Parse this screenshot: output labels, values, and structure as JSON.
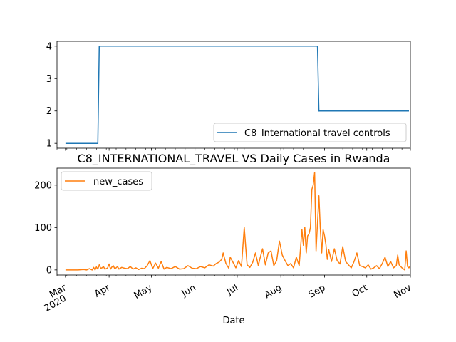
{
  "chart_data": [
    {
      "type": "line",
      "title": "",
      "xlabel": "",
      "ylabel": "",
      "ylim": [
        0.85,
        4.15
      ],
      "yticks": [
        1,
        2,
        3,
        4
      ],
      "legend": "bottom-right",
      "series": [
        {
          "name": "C8_International travel controls",
          "color": "#1f77b4",
          "x": [
            "2020-03-01",
            "2020-03-24",
            "2020-03-25",
            "2020-08-27",
            "2020-08-28",
            "2020-10-31"
          ],
          "values": [
            1,
            1,
            4,
            4,
            2,
            2
          ]
        }
      ]
    },
    {
      "type": "line",
      "title": "C8_INTERNATIONAL_TRAVEL VS Daily Cases in Rwanda",
      "xlabel": "Date",
      "ylabel": "",
      "ylim": [
        -12,
        240
      ],
      "yticks": [
        0,
        100,
        200
      ],
      "legend": "top-left",
      "x_ticks": [
        {
          "date": "2020-03-01",
          "label": "Mar",
          "sublabel": "2020"
        },
        {
          "date": "2020-04-01",
          "label": "Apr",
          "sublabel": ""
        },
        {
          "date": "2020-05-01",
          "label": "May",
          "sublabel": ""
        },
        {
          "date": "2020-06-01",
          "label": "Jun",
          "sublabel": ""
        },
        {
          "date": "2020-07-01",
          "label": "Jul",
          "sublabel": ""
        },
        {
          "date": "2020-08-01",
          "label": "Aug",
          "sublabel": ""
        },
        {
          "date": "2020-09-01",
          "label": "Sep",
          "sublabel": ""
        },
        {
          "date": "2020-10-01",
          "label": "Oct",
          "sublabel": ""
        },
        {
          "date": "2020-11-01",
          "label": "Nov",
          "sublabel": ""
        }
      ],
      "series": [
        {
          "name": "new_cases",
          "color": "#ff7f0e",
          "x": [
            "2020-03-01",
            "2020-03-10",
            "2020-03-14",
            "2020-03-16",
            "2020-03-18",
            "2020-03-20",
            "2020-03-21",
            "2020-03-22",
            "2020-03-23",
            "2020-03-24",
            "2020-03-25",
            "2020-03-26",
            "2020-03-27",
            "2020-03-28",
            "2020-03-29",
            "2020-03-30",
            "2020-03-31",
            "2020-04-01",
            "2020-04-02",
            "2020-04-03",
            "2020-04-04",
            "2020-04-05",
            "2020-04-06",
            "2020-04-07",
            "2020-04-08",
            "2020-04-10",
            "2020-04-12",
            "2020-04-14",
            "2020-04-16",
            "2020-04-18",
            "2020-04-20",
            "2020-04-22",
            "2020-04-24",
            "2020-04-26",
            "2020-04-28",
            "2020-04-30",
            "2020-05-02",
            "2020-05-04",
            "2020-05-06",
            "2020-05-08",
            "2020-05-10",
            "2020-05-12",
            "2020-05-15",
            "2020-05-18",
            "2020-05-21",
            "2020-05-24",
            "2020-05-27",
            "2020-05-30",
            "2020-06-02",
            "2020-06-05",
            "2020-06-08",
            "2020-06-11",
            "2020-06-14",
            "2020-06-16",
            "2020-06-18",
            "2020-06-20",
            "2020-06-21",
            "2020-06-23",
            "2020-06-25",
            "2020-06-26",
            "2020-06-28",
            "2020-06-30",
            "2020-07-02",
            "2020-07-04",
            "2020-07-06",
            "2020-07-08",
            "2020-07-10",
            "2020-07-12",
            "2020-07-14",
            "2020-07-16",
            "2020-07-17",
            "2020-07-19",
            "2020-07-21",
            "2020-07-23",
            "2020-07-25",
            "2020-07-27",
            "2020-07-29",
            "2020-07-31",
            "2020-08-02",
            "2020-08-04",
            "2020-08-06",
            "2020-08-08",
            "2020-08-10",
            "2020-08-12",
            "2020-08-14",
            "2020-08-16",
            "2020-08-17",
            "2020-08-18",
            "2020-08-19",
            "2020-08-20",
            "2020-08-21",
            "2020-08-22",
            "2020-08-23",
            "2020-08-24",
            "2020-08-25",
            "2020-08-26",
            "2020-08-27",
            "2020-08-28",
            "2020-08-29",
            "2020-08-30",
            "2020-08-31",
            "2020-09-01",
            "2020-09-02",
            "2020-09-03",
            "2020-09-04",
            "2020-09-06",
            "2020-09-08",
            "2020-09-10",
            "2020-09-12",
            "2020-09-14",
            "2020-09-16",
            "2020-09-18",
            "2020-09-20",
            "2020-09-22",
            "2020-09-24",
            "2020-09-26",
            "2020-09-28",
            "2020-09-30",
            "2020-10-02",
            "2020-10-04",
            "2020-10-06",
            "2020-10-08",
            "2020-10-10",
            "2020-10-12",
            "2020-10-14",
            "2020-10-16",
            "2020-10-18",
            "2020-10-20",
            "2020-10-22",
            "2020-10-23",
            "2020-10-24",
            "2020-10-26",
            "2020-10-28",
            "2020-10-29",
            "2020-10-30",
            "2020-10-31",
            "2020-11-01"
          ],
          "values": [
            0,
            0,
            1,
            0,
            3,
            0,
            6,
            0,
            7,
            2,
            12,
            4,
            5,
            8,
            2,
            3,
            5,
            14,
            2,
            7,
            10,
            3,
            5,
            8,
            2,
            6,
            4,
            3,
            8,
            2,
            5,
            1,
            4,
            3,
            10,
            22,
            3,
            16,
            4,
            20,
            2,
            6,
            3,
            8,
            2,
            3,
            10,
            4,
            3,
            8,
            5,
            12,
            9,
            15,
            18,
            25,
            40,
            15,
            4,
            30,
            18,
            5,
            22,
            8,
            100,
            12,
            6,
            18,
            40,
            10,
            25,
            50,
            12,
            40,
            45,
            10,
            22,
            68,
            35,
            22,
            10,
            15,
            5,
            30,
            10,
            95,
            58,
            100,
            40,
            80,
            85,
            100,
            190,
            200,
            230,
            45,
            110,
            175,
            100,
            40,
            95,
            80,
            60,
            25,
            48,
            20,
            50,
            22,
            14,
            55,
            20,
            12,
            5,
            20,
            40,
            10,
            8,
            5,
            12,
            2,
            5,
            10,
            3,
            15,
            30,
            8,
            20,
            5,
            10,
            35,
            12,
            5,
            0,
            45,
            8,
            5,
            10
          ]
        }
      ]
    }
  ]
}
